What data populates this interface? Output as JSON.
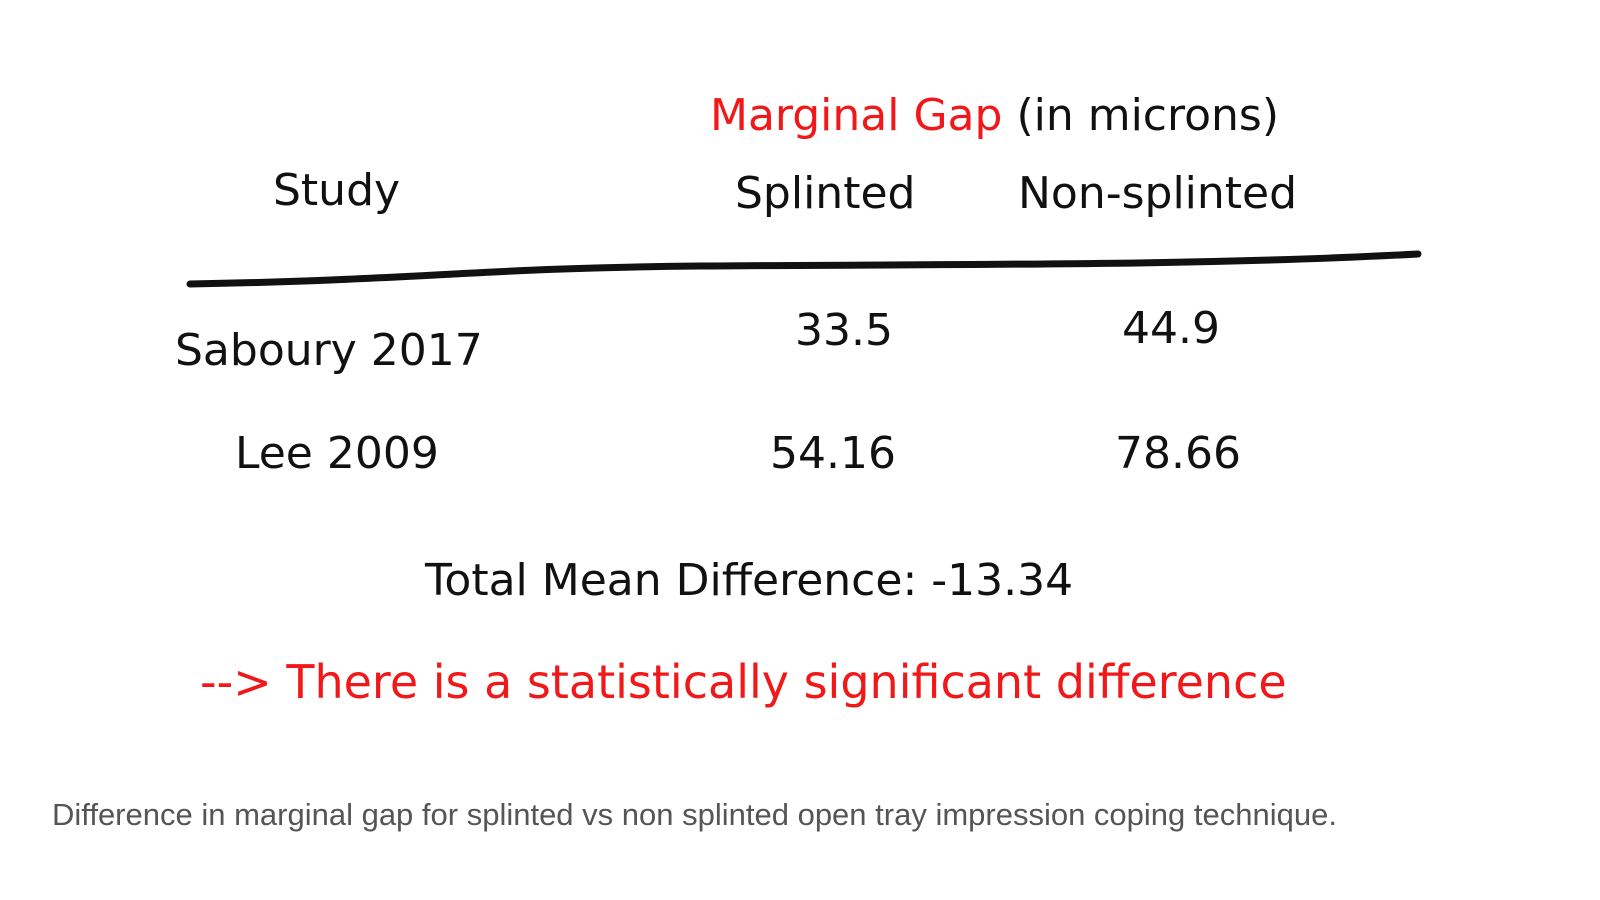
{
  "header": {
    "title_highlight": "Marginal Gap",
    "title_rest": "(in microns)"
  },
  "table": {
    "columns": [
      "Study",
      "Splinted",
      "Non-splinted"
    ],
    "rows": [
      [
        "Saboury 2017",
        33.5,
        44.9
      ],
      [
        "Lee 2009",
        54.16,
        78.66
      ]
    ]
  },
  "summary": "Total Mean Difference: -13.34",
  "conclusion": "--> There is a statistically significant difference",
  "caption": "Difference in marginal gap for splinted vs non splinted open tray impression coping technique."
}
